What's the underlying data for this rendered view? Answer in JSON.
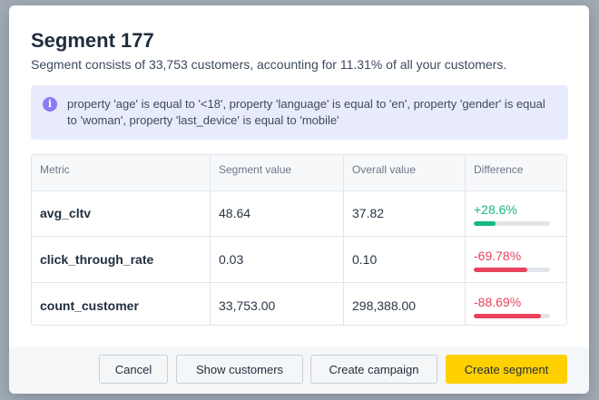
{
  "modal": {
    "title": "Segment 177",
    "subtitle": "Segment consists of 33,753 customers, accounting for 11.31% of all your customers.",
    "info_text": "property 'age' is equal to '<18', property 'language' is equal to 'en', property 'gender' is equal to 'woman', property 'last_device' is equal to 'mobile'",
    "info_icon_glyph": "i"
  },
  "table": {
    "headers": [
      "Metric",
      "Segment value",
      "Overall value",
      "Difference"
    ],
    "rows": [
      {
        "metric": "avg_cltv",
        "segment_value": "48.64",
        "overall_value": "37.82",
        "difference": "+28.6%",
        "bar_fraction": 0.286,
        "sign": "pos"
      },
      {
        "metric": "click_through_rate",
        "segment_value": "0.03",
        "overall_value": "0.10",
        "difference": "-69.78%",
        "bar_fraction": 0.6978,
        "sign": "neg"
      },
      {
        "metric": "count_customer",
        "segment_value": "33,753.00",
        "overall_value": "298,388.00",
        "difference": "-88.69%",
        "bar_fraction": 0.8869,
        "sign": "neg"
      }
    ]
  },
  "footer": {
    "cancel_label": "Cancel",
    "show_customers_label": "Show customers",
    "create_campaign_label": "Create campaign",
    "create_segment_label": "Create segment"
  },
  "colors": {
    "positive": "#16b883",
    "negative": "#e8435f",
    "primary_button": "#ffd000",
    "info_background": "#e8ebfb",
    "info_icon": "#8b7cf6"
  }
}
